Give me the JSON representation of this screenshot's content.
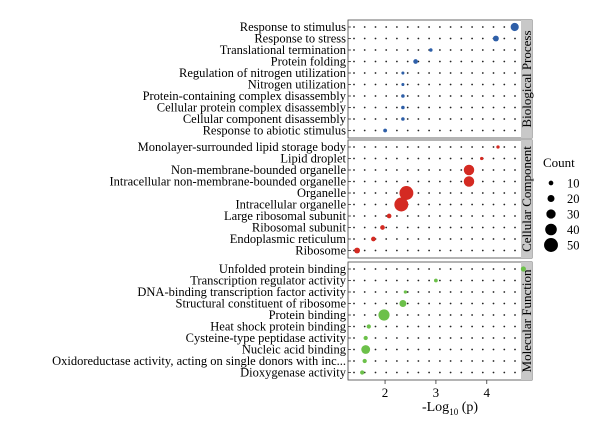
{
  "chart_data": {
    "type": "scatter",
    "title": "",
    "xlabel": "-Log",
    "xlabel_sub": "10",
    "xlabel_tail": " (p)",
    "xlim": [
      1.35,
      4.85
    ],
    "xticks": [
      2,
      3,
      4
    ],
    "grid": true,
    "legend_title": "Count",
    "legend_position": "right",
    "legend_sizes": [
      10,
      20,
      30,
      40,
      50
    ],
    "colors": {
      "Biological Process": "#2e5fa8",
      "Cellular Component": "#d42a22",
      "Molecular Function": "#6cc04a",
      "strip": "#c8c8c8",
      "grid_dot": "#222222"
    },
    "panels": [
      {
        "name": "Biological Process",
        "terms": [
          {
            "label": "Response to stimulus",
            "x": 4.55,
            "count": 25
          },
          {
            "label": "Response to stress",
            "x": 4.18,
            "count": 15
          },
          {
            "label": "Translational termination",
            "x": 2.9,
            "count": 5
          },
          {
            "label": "Protein folding",
            "x": 2.6,
            "count": 10
          },
          {
            "label": "Regulation of nitrogen utilization",
            "x": 2.35,
            "count": 3
          },
          {
            "label": "Nitrogen utilization",
            "x": 2.35,
            "count": 3
          },
          {
            "label": "Protein-containing complex disassembly",
            "x": 2.35,
            "count": 5
          },
          {
            "label": "Cellular protein complex disassembly",
            "x": 2.35,
            "count": 5
          },
          {
            "label": "Cellular component disassembly",
            "x": 2.35,
            "count": 5
          },
          {
            "label": "Response to abiotic stimulus",
            "x": 2.0,
            "count": 6
          }
        ]
      },
      {
        "name": "Cellular Component",
        "terms": [
          {
            "label": "Monolayer-surrounded lipid storage body",
            "x": 4.22,
            "count": 4
          },
          {
            "label": "Lipid droplet",
            "x": 3.9,
            "count": 4
          },
          {
            "label": "Non-membrane-bounded organelle",
            "x": 3.65,
            "count": 35
          },
          {
            "label": "Intracellular non-membrane-bounded organelle",
            "x": 3.65,
            "count": 35
          },
          {
            "label": "Organelle",
            "x": 2.42,
            "count": 50
          },
          {
            "label": "Intracellular organelle",
            "x": 2.32,
            "count": 50
          },
          {
            "label": "Large ribosomal subunit",
            "x": 2.08,
            "count": 10
          },
          {
            "label": "Ribosomal subunit",
            "x": 1.95,
            "count": 10
          },
          {
            "label": "Endoplasmic reticulum",
            "x": 1.77,
            "count": 10
          },
          {
            "label": "Ribosome",
            "x": 1.45,
            "count": 15
          }
        ]
      },
      {
        "name": "Molecular Function",
        "terms": [
          {
            "label": "Unfolded protein binding",
            "x": 4.72,
            "count": 12
          },
          {
            "label": "Transcription regulator activity",
            "x": 3.0,
            "count": 6
          },
          {
            "label": "DNA-binding transcription factor activity",
            "x": 2.4,
            "count": 4
          },
          {
            "label": "Structural constituent of ribosome",
            "x": 2.35,
            "count": 20
          },
          {
            "label": "Protein binding",
            "x": 1.98,
            "count": 38
          },
          {
            "label": "Heat shock protein binding",
            "x": 1.68,
            "count": 8
          },
          {
            "label": "Cysteine-type peptidase activity",
            "x": 1.62,
            "count": 8
          },
          {
            "label": "Nucleic acid binding",
            "x": 1.62,
            "count": 28
          },
          {
            "label": "Oxidoreductase activity, acting on single donors with inc...",
            "x": 1.6,
            "count": 8
          },
          {
            "label": "Dioxygenase activity",
            "x": 1.55,
            "count": 8
          }
        ]
      }
    ]
  }
}
